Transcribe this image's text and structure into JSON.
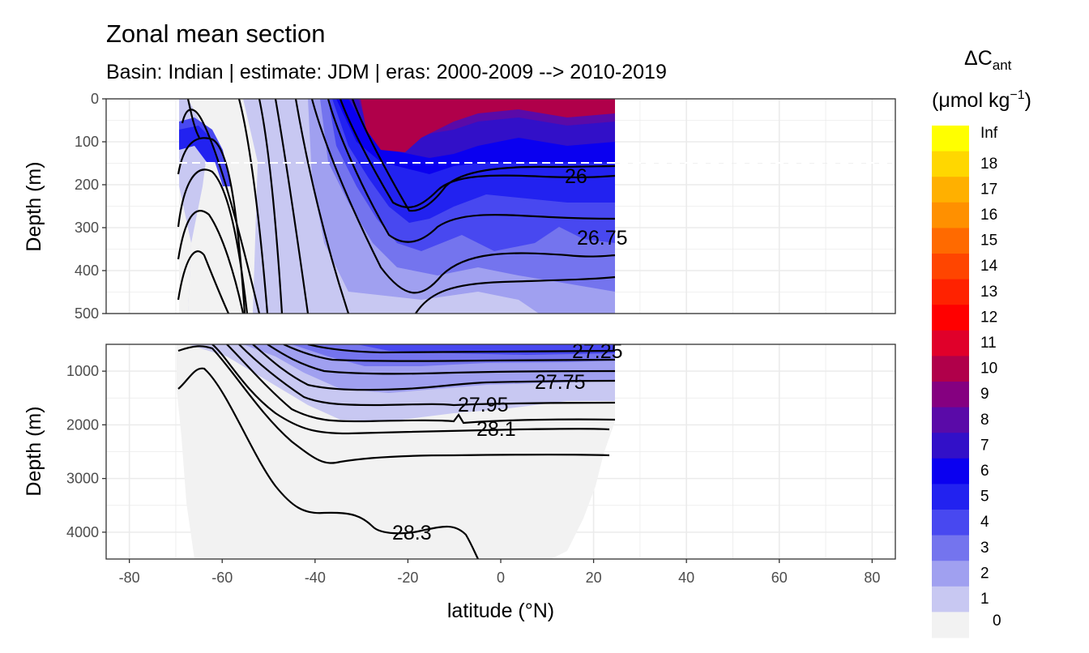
{
  "chart_data": {
    "type": "contour",
    "title": "Zonal mean section",
    "subtitle": "Basin: Indian | estimate: JDM  | eras: 2000-2009 --> 2010-2019",
    "xlabel": "latitude (°N)",
    "ylabel": "Depth (m)",
    "xlim": [
      -85,
      85
    ],
    "x_ticks": [
      "-80",
      "-60",
      "-40",
      "-20",
      "0",
      "20",
      "40",
      "60",
      "80"
    ],
    "panels": [
      {
        "name": "upper",
        "ylim": [
          0,
          500
        ],
        "y_ticks": [
          "0",
          "100",
          "200",
          "300",
          "400",
          "500"
        ]
      },
      {
        "name": "lower",
        "ylim": [
          500,
          4500
        ],
        "y_ticks": [
          "1000",
          "2000",
          "3000",
          "4000"
        ]
      }
    ],
    "reference_depth": 150,
    "legend": {
      "title_main": "ΔC",
      "title_sub": "ant",
      "unit_prefix": "(μmol kg",
      "unit_exp": "−1",
      "unit_suffix": ")",
      "placement": "right",
      "labels": [
        "Inf",
        "18",
        "17",
        "16",
        "15",
        "14",
        "13",
        "12",
        "11",
        "10",
        "9",
        "8",
        "7",
        "6",
        "5",
        "4",
        "3",
        "2",
        "1",
        "0"
      ],
      "colors": [
        "#ffff00",
        "#ffd700",
        "#ffb000",
        "#ff9000",
        "#ff6a00",
        "#ff4500",
        "#ff2200",
        "#ff0000",
        "#e0002a",
        "#b0004a",
        "#850080",
        "#5a0aa8",
        "#3210c8",
        "#0a00f0",
        "#2222f0",
        "#4848f0",
        "#7474ee",
        "#a0a0f0",
        "#c8c8f2",
        "#f2f2f2"
      ]
    },
    "density_contours": [
      {
        "label": "26",
        "lat": 16,
        "depth": 180
      },
      {
        "label": "26.75",
        "lat": 20,
        "depth": 320
      },
      {
        "label": "27.25",
        "lat": 21,
        "depth": 560
      },
      {
        "label": "27.75",
        "lat": 13,
        "depth": 1200
      },
      {
        "label": "27.95",
        "lat": -3,
        "depth": 1600
      },
      {
        "label": "28.1",
        "lat": -1,
        "depth": 2050
      },
      {
        "label": "28.3",
        "lat": -19,
        "depth": 4000
      }
    ]
  }
}
